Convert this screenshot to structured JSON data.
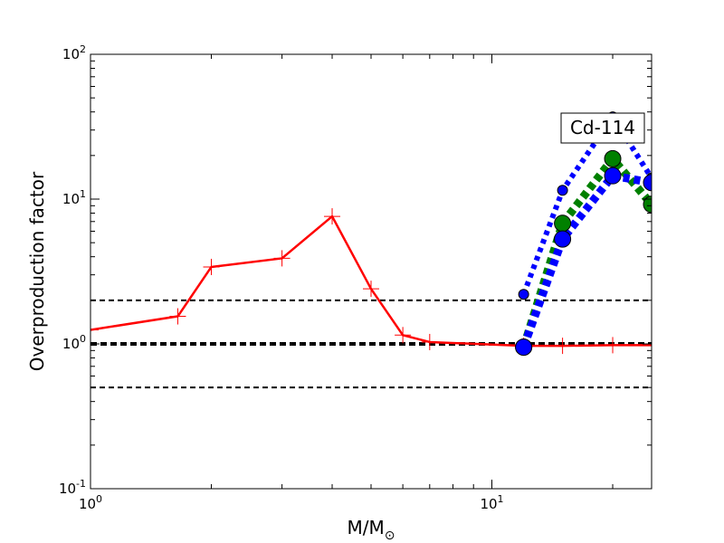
{
  "chart_data": {
    "type": "line",
    "xscale": "log",
    "yscale": "log",
    "xlim": [
      1,
      25
    ],
    "ylim": [
      0.1,
      100
    ],
    "xlabel": {
      "base": "M/M",
      "sub": "⊙"
    },
    "ylabel": "Overproduction factor",
    "xticks": [
      {
        "value": 1,
        "base": "10",
        "exp": "0"
      },
      {
        "value": 10,
        "base": "10",
        "exp": "1"
      }
    ],
    "yticks": [
      {
        "value": 0.1,
        "base": "10",
        "exp": "-1"
      },
      {
        "value": 1,
        "base": "10",
        "exp": "0"
      },
      {
        "value": 10,
        "base": "10",
        "exp": "1"
      },
      {
        "value": 100,
        "base": "10",
        "exp": "2"
      }
    ],
    "annotation": "Cd-114",
    "reference_lines": [
      {
        "y": 2.0,
        "style": "dashed",
        "color": "#000000",
        "width": "thin"
      },
      {
        "y": 1.0,
        "style": "dashed",
        "color": "#000000",
        "width": "thick"
      },
      {
        "y": 0.5,
        "style": "dashed",
        "color": "#000000",
        "width": "thin"
      }
    ],
    "series": [
      {
        "color": "#ff0000",
        "line": "solid",
        "marker": "plus",
        "x": [
          1.0,
          1.65,
          2.0,
          3.0,
          4.0,
          5.0,
          6.0,
          7.0,
          12.0,
          15.0,
          20.0,
          25.0
        ],
        "y": [
          1.25,
          1.55,
          3.4,
          3.9,
          7.6,
          2.4,
          1.15,
          1.03,
          0.97,
          0.97,
          0.98,
          0.98
        ]
      },
      {
        "color": "#0000ff",
        "line": "dotted",
        "marker": "circle-small",
        "x": [
          12.0,
          15.0,
          20.0,
          25.0
        ],
        "y": [
          2.2,
          11.5,
          37.0,
          14.0
        ]
      },
      {
        "color": "#008000",
        "line": "dotted",
        "marker": "circle-large",
        "x": [
          12.0,
          15.0,
          20.0,
          25.0
        ],
        "y": [
          0.95,
          6.8,
          19.0,
          9.2
        ]
      },
      {
        "color": "#0000ff",
        "line": "dotted",
        "marker": "circle-large",
        "x": [
          12.0,
          15.0,
          20.0,
          25.0
        ],
        "y": [
          0.95,
          5.3,
          14.5,
          13.0
        ]
      }
    ]
  }
}
